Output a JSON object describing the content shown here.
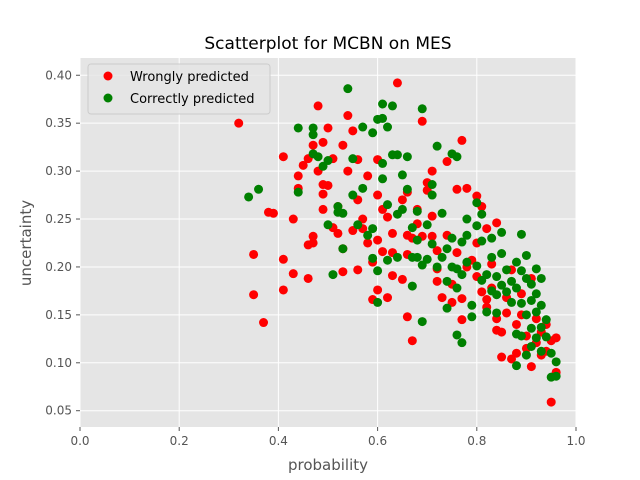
{
  "chart_data": {
    "type": "scatter",
    "title": "Scatterplot for MCBN on MES",
    "xlabel": "probability",
    "ylabel": "uncertainty",
    "xlim": [
      0.0,
      1.0
    ],
    "ylim": [
      0.033,
      0.418
    ],
    "xticks": [
      "0.0",
      "0.2",
      "0.4",
      "0.6",
      "0.8",
      "1.0"
    ],
    "xtick_values": [
      0.0,
      0.2,
      0.4,
      0.6,
      0.8,
      1.0
    ],
    "yticks": [
      "0.05",
      "0.10",
      "0.15",
      "0.20",
      "0.25",
      "0.30",
      "0.35",
      "0.40"
    ],
    "ytick_values": [
      0.05,
      0.1,
      0.15,
      0.2,
      0.25,
      0.3,
      0.35,
      0.4
    ],
    "grid": true,
    "legend_position": "top-left",
    "background_color": "#e5e5e5",
    "series": [
      {
        "name": "Wrongly predicted",
        "color": "#ff0000",
        "points": [
          [
            0.32,
            0.35
          ],
          [
            0.35,
            0.213
          ],
          [
            0.35,
            0.171
          ],
          [
            0.37,
            0.142
          ],
          [
            0.38,
            0.257
          ],
          [
            0.39,
            0.256
          ],
          [
            0.41,
            0.176
          ],
          [
            0.41,
            0.208
          ],
          [
            0.41,
            0.315
          ],
          [
            0.43,
            0.193
          ],
          [
            0.43,
            0.25
          ],
          [
            0.44,
            0.282
          ],
          [
            0.44,
            0.295
          ],
          [
            0.45,
            0.306
          ],
          [
            0.46,
            0.223
          ],
          [
            0.46,
            0.188
          ],
          [
            0.46,
            0.313
          ],
          [
            0.47,
            0.225
          ],
          [
            0.47,
            0.232
          ],
          [
            0.47,
            0.327
          ],
          [
            0.48,
            0.368
          ],
          [
            0.48,
            0.3
          ],
          [
            0.49,
            0.26
          ],
          [
            0.49,
            0.276
          ],
          [
            0.49,
            0.286
          ],
          [
            0.49,
            0.33
          ],
          [
            0.5,
            0.345
          ],
          [
            0.5,
            0.285
          ],
          [
            0.51,
            0.313
          ],
          [
            0.51,
            0.241
          ],
          [
            0.52,
            0.235
          ],
          [
            0.52,
            0.263
          ],
          [
            0.53,
            0.195
          ],
          [
            0.53,
            0.219
          ],
          [
            0.53,
            0.327
          ],
          [
            0.54,
            0.3
          ],
          [
            0.54,
            0.358
          ],
          [
            0.55,
            0.238
          ],
          [
            0.55,
            0.342
          ],
          [
            0.56,
            0.312
          ],
          [
            0.56,
            0.197
          ],
          [
            0.56,
            0.27
          ],
          [
            0.57,
            0.24
          ],
          [
            0.57,
            0.25
          ],
          [
            0.58,
            0.225
          ],
          [
            0.58,
            0.295
          ],
          [
            0.59,
            0.166
          ],
          [
            0.59,
            0.205
          ],
          [
            0.6,
            0.176
          ],
          [
            0.6,
            0.228
          ],
          [
            0.6,
            0.275
          ],
          [
            0.6,
            0.312
          ],
          [
            0.61,
            0.216
          ],
          [
            0.61,
            0.26
          ],
          [
            0.62,
            0.168
          ],
          [
            0.62,
            0.252
          ],
          [
            0.63,
            0.191
          ],
          [
            0.63,
            0.235
          ],
          [
            0.63,
            0.215
          ],
          [
            0.64,
            0.392
          ],
          [
            0.65,
            0.27
          ],
          [
            0.65,
            0.187
          ],
          [
            0.66,
            0.278
          ],
          [
            0.66,
            0.148
          ],
          [
            0.66,
            0.213
          ],
          [
            0.66,
            0.233
          ],
          [
            0.67,
            0.123
          ],
          [
            0.67,
            0.23
          ],
          [
            0.68,
            0.245
          ],
          [
            0.68,
            0.26
          ],
          [
            0.69,
            0.352
          ],
          [
            0.69,
            0.232
          ],
          [
            0.7,
            0.28
          ],
          [
            0.7,
            0.288
          ],
          [
            0.71,
            0.3
          ],
          [
            0.71,
            0.253
          ],
          [
            0.71,
            0.232
          ],
          [
            0.72,
            0.217
          ],
          [
            0.72,
            0.198
          ],
          [
            0.72,
            0.185
          ],
          [
            0.73,
            0.168
          ],
          [
            0.74,
            0.31
          ],
          [
            0.74,
            0.233
          ],
          [
            0.75,
            0.182
          ],
          [
            0.75,
            0.163
          ],
          [
            0.76,
            0.281
          ],
          [
            0.76,
            0.215
          ],
          [
            0.77,
            0.332
          ],
          [
            0.77,
            0.167
          ],
          [
            0.77,
            0.145
          ],
          [
            0.78,
            0.282
          ],
          [
            0.78,
            0.2
          ],
          [
            0.79,
            0.207
          ],
          [
            0.8,
            0.274
          ],
          [
            0.8,
            0.225
          ],
          [
            0.8,
            0.19
          ],
          [
            0.81,
            0.263
          ],
          [
            0.81,
            0.174
          ],
          [
            0.82,
            0.24
          ],
          [
            0.82,
            0.166
          ],
          [
            0.82,
            0.158
          ],
          [
            0.83,
            0.178
          ],
          [
            0.83,
            0.203
          ],
          [
            0.84,
            0.246
          ],
          [
            0.84,
            0.146
          ],
          [
            0.84,
            0.134
          ],
          [
            0.85,
            0.106
          ],
          [
            0.85,
            0.132
          ],
          [
            0.86,
            0.168
          ],
          [
            0.86,
            0.152
          ],
          [
            0.87,
            0.197
          ],
          [
            0.87,
            0.104
          ],
          [
            0.88,
            0.14
          ],
          [
            0.88,
            0.11
          ],
          [
            0.89,
            0.172
          ],
          [
            0.89,
            0.15
          ],
          [
            0.9,
            0.115
          ],
          [
            0.9,
            0.128
          ],
          [
            0.91,
            0.188
          ],
          [
            0.91,
            0.096
          ],
          [
            0.92,
            0.146
          ],
          [
            0.92,
            0.121
          ],
          [
            0.93,
            0.132
          ],
          [
            0.93,
            0.108
          ],
          [
            0.94,
            0.14
          ],
          [
            0.94,
            0.112
          ],
          [
            0.95,
            0.059
          ],
          [
            0.95,
            0.123
          ],
          [
            0.96,
            0.09
          ],
          [
            0.96,
            0.126
          ]
        ]
      },
      {
        "name": "Correctly predicted",
        "color": "#008000",
        "points": [
          [
            0.34,
            0.273
          ],
          [
            0.36,
            0.281
          ],
          [
            0.44,
            0.345
          ],
          [
            0.44,
            0.278
          ],
          [
            0.47,
            0.345
          ],
          [
            0.47,
            0.338
          ],
          [
            0.47,
            0.318
          ],
          [
            0.48,
            0.315
          ],
          [
            0.49,
            0.305
          ],
          [
            0.5,
            0.311
          ],
          [
            0.5,
            0.244
          ],
          [
            0.51,
            0.192
          ],
          [
            0.52,
            0.263
          ],
          [
            0.52,
            0.257
          ],
          [
            0.53,
            0.256
          ],
          [
            0.53,
            0.219
          ],
          [
            0.54,
            0.386
          ],
          [
            0.55,
            0.313
          ],
          [
            0.55,
            0.275
          ],
          [
            0.56,
            0.244
          ],
          [
            0.57,
            0.346
          ],
          [
            0.57,
            0.282
          ],
          [
            0.58,
            0.233
          ],
          [
            0.59,
            0.209
          ],
          [
            0.59,
            0.24
          ],
          [
            0.59,
            0.34
          ],
          [
            0.6,
            0.196
          ],
          [
            0.6,
            0.163
          ],
          [
            0.6,
            0.354
          ],
          [
            0.61,
            0.37
          ],
          [
            0.61,
            0.355
          ],
          [
            0.61,
            0.308
          ],
          [
            0.61,
            0.292
          ],
          [
            0.62,
            0.265
          ],
          [
            0.62,
            0.207
          ],
          [
            0.62,
            0.346
          ],
          [
            0.63,
            0.368
          ],
          [
            0.63,
            0.317
          ],
          [
            0.64,
            0.317
          ],
          [
            0.64,
            0.255
          ],
          [
            0.64,
            0.21
          ],
          [
            0.65,
            0.296
          ],
          [
            0.65,
            0.26
          ],
          [
            0.66,
            0.315
          ],
          [
            0.66,
            0.281
          ],
          [
            0.67,
            0.21
          ],
          [
            0.67,
            0.241
          ],
          [
            0.67,
            0.18
          ],
          [
            0.68,
            0.228
          ],
          [
            0.68,
            0.21
          ],
          [
            0.68,
            0.258
          ],
          [
            0.69,
            0.365
          ],
          [
            0.69,
            0.143
          ],
          [
            0.69,
            0.202
          ],
          [
            0.7,
            0.208
          ],
          [
            0.7,
            0.244
          ],
          [
            0.71,
            0.286
          ],
          [
            0.71,
            0.275
          ],
          [
            0.71,
            0.224
          ],
          [
            0.72,
            0.326
          ],
          [
            0.72,
            0.2
          ],
          [
            0.73,
            0.256
          ],
          [
            0.73,
            0.21
          ],
          [
            0.74,
            0.219
          ],
          [
            0.74,
            0.185
          ],
          [
            0.74,
            0.157
          ],
          [
            0.75,
            0.318
          ],
          [
            0.75,
            0.23
          ],
          [
            0.75,
            0.2
          ],
          [
            0.76,
            0.315
          ],
          [
            0.76,
            0.198
          ],
          [
            0.76,
            0.178
          ],
          [
            0.76,
            0.129
          ],
          [
            0.77,
            0.226
          ],
          [
            0.77,
            0.192
          ],
          [
            0.77,
            0.121
          ],
          [
            0.78,
            0.25
          ],
          [
            0.78,
            0.233
          ],
          [
            0.78,
            0.205
          ],
          [
            0.79,
            0.16
          ],
          [
            0.79,
            0.148
          ],
          [
            0.8,
            0.267
          ],
          [
            0.8,
            0.243
          ],
          [
            0.8,
            0.201
          ],
          [
            0.81,
            0.255
          ],
          [
            0.81,
            0.227
          ],
          [
            0.81,
            0.186
          ],
          [
            0.82,
            0.192
          ],
          [
            0.82,
            0.153
          ],
          [
            0.83,
            0.23
          ],
          [
            0.83,
            0.21
          ],
          [
            0.83,
            0.175
          ],
          [
            0.84,
            0.19
          ],
          [
            0.84,
            0.171
          ],
          [
            0.84,
            0.152
          ],
          [
            0.85,
            0.236
          ],
          [
            0.85,
            0.214
          ],
          [
            0.85,
            0.181
          ],
          [
            0.86,
            0.197
          ],
          [
            0.86,
            0.174
          ],
          [
            0.87,
            0.185
          ],
          [
            0.87,
            0.163
          ],
          [
            0.88,
            0.205
          ],
          [
            0.88,
            0.178
          ],
          [
            0.88,
            0.13
          ],
          [
            0.88,
            0.097
          ],
          [
            0.89,
            0.234
          ],
          [
            0.89,
            0.196
          ],
          [
            0.89,
            0.162
          ],
          [
            0.89,
            0.128
          ],
          [
            0.9,
            0.212
          ],
          [
            0.9,
            0.188
          ],
          [
            0.9,
            0.15
          ],
          [
            0.9,
            0.108
          ],
          [
            0.91,
            0.182
          ],
          [
            0.91,
            0.165
          ],
          [
            0.91,
            0.136
          ],
          [
            0.91,
            0.117
          ],
          [
            0.92,
            0.198
          ],
          [
            0.92,
            0.172
          ],
          [
            0.92,
            0.153
          ],
          [
            0.92,
            0.126
          ],
          [
            0.93,
            0.188
          ],
          [
            0.93,
            0.16
          ],
          [
            0.93,
            0.137
          ],
          [
            0.93,
            0.112
          ],
          [
            0.94,
            0.145
          ],
          [
            0.94,
            0.127
          ],
          [
            0.95,
            0.085
          ],
          [
            0.95,
            0.11
          ],
          [
            0.96,
            0.086
          ],
          [
            0.96,
            0.101
          ]
        ]
      }
    ]
  }
}
